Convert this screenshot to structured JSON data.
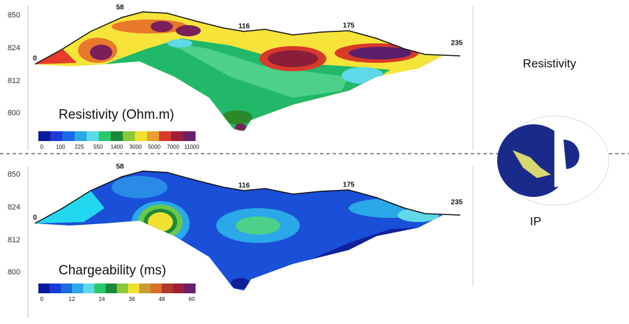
{
  "top_panel": {
    "title": "Resistivity (Ohm.m)",
    "depth_labels": [
      "850",
      "824",
      "812",
      "800"
    ],
    "station_labels": [
      "0",
      "58",
      "116",
      "175",
      "235"
    ],
    "colorbar_labels": [
      "0",
      "100",
      "225",
      "550",
      "1400",
      "3000",
      "5000",
      "7000",
      "11000"
    ]
  },
  "bottom_panel": {
    "title": "Chargeability (ms)",
    "depth_labels": [
      "850",
      "824",
      "812",
      "800"
    ],
    "station_labels": [
      "0",
      "58",
      "116",
      "175",
      "235"
    ],
    "colorbar_labels": [
      "0",
      "12",
      "24",
      "36",
      "48",
      "60"
    ]
  },
  "side_labels": {
    "resistivity": "Resistivity",
    "ip": "IP"
  }
}
